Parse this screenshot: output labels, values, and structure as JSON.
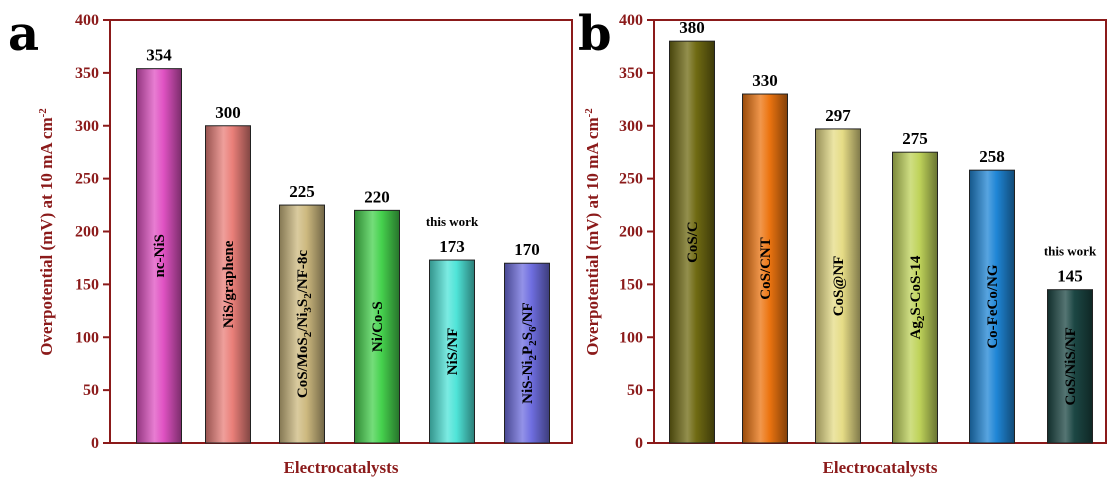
{
  "chart_data": [
    {
      "panel": "a",
      "type": "bar",
      "xlabel": "Electrocatalysts",
      "ylabel": "Overpotential (mV) at 10 mA cm",
      "ylabel_sup": "-2",
      "ylim": [
        0,
        400
      ],
      "yticks": [
        "0",
        "50",
        "100",
        "150",
        "200",
        "250",
        "300",
        "350",
        "400"
      ],
      "categories": [
        {
          "pre": "nc-NiS",
          "segs": []
        },
        {
          "pre": "NiS/graphene",
          "segs": []
        },
        {
          "pre": "CoS/MoS",
          "segs": [
            [
              "2",
              "/Ni"
            ],
            [
              "3",
              "S"
            ],
            [
              "2",
              "/NF-8c"
            ]
          ]
        },
        {
          "pre": "Ni/Co-S",
          "segs": []
        },
        {
          "pre": "NiS/NF",
          "segs": []
        },
        {
          "pre": "NiS-Ni",
          "segs": [
            [
              "2",
              "P"
            ],
            [
              "2",
              "S"
            ],
            [
              "6",
              "/NF"
            ]
          ]
        }
      ],
      "values": [
        354,
        300,
        225,
        220,
        173,
        170
      ],
      "value_labels": [
        "354",
        "300",
        "225",
        "220",
        "173",
        "170"
      ],
      "colors": [
        "#e052c3",
        "#ea7f79",
        "#cdb97f",
        "#46d24e",
        "#4fe4d8",
        "#6f6ee0"
      ],
      "annotation": {
        "text": "this work",
        "bar": 4
      }
    },
    {
      "panel": "b",
      "type": "bar",
      "xlabel": "Electrocatalysts",
      "ylabel": "Overpotential (mV) at 10 mA cm",
      "ylabel_sup": "-2",
      "ylim": [
        0,
        400
      ],
      "yticks": [
        "0",
        "50",
        "100",
        "150",
        "200",
        "250",
        "300",
        "350",
        "400"
      ],
      "categories": [
        {
          "pre": "CoS/C",
          "segs": []
        },
        {
          "pre": "CoS/CNT",
          "segs": []
        },
        {
          "pre": "CoS@NF",
          "segs": []
        },
        {
          "pre": "Ag",
          "segs": [
            [
              "2",
              "S-CoS-14"
            ]
          ]
        },
        {
          "pre": "Co-FeCo/NG",
          "segs": []
        },
        {
          "pre": "CoS/NiS/NF",
          "segs": []
        }
      ],
      "values": [
        380,
        330,
        297,
        275,
        258,
        145
      ],
      "value_labels": [
        "380",
        "330",
        "297",
        "275",
        "258",
        "145"
      ],
      "colors": [
        "#6f6a12",
        "#ec7410",
        "#e6dc86",
        "#bfd35a",
        "#1f86d6",
        "#1c4744"
      ],
      "annotation": {
        "text": "this work",
        "bar": 5
      }
    }
  ]
}
